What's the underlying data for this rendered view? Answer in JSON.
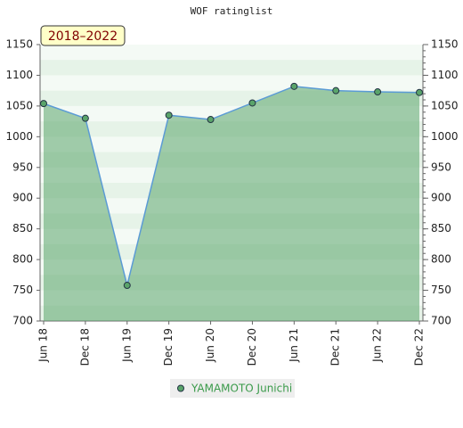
{
  "chart_data": {
    "type": "line",
    "title": "WOF ratinglist",
    "annotation": "2018–2022",
    "categories": [
      "Jun 18",
      "Dec 18",
      "Jun 19",
      "Dec 19",
      "Jun 20",
      "Dec 20",
      "Jun 21",
      "Dec 21",
      "Jun 22",
      "Dec 22"
    ],
    "series": [
      {
        "name": "YAMAMOTO Junichi",
        "color": "#5aa46a",
        "values": [
          1054,
          1030,
          758,
          1035,
          1028,
          1055,
          1082,
          1075,
          1073,
          1072
        ]
      }
    ],
    "ylim": [
      700,
      1150
    ],
    "yticks": [
      700,
      750,
      800,
      850,
      900,
      950,
      1000,
      1050,
      1100,
      1150
    ]
  }
}
